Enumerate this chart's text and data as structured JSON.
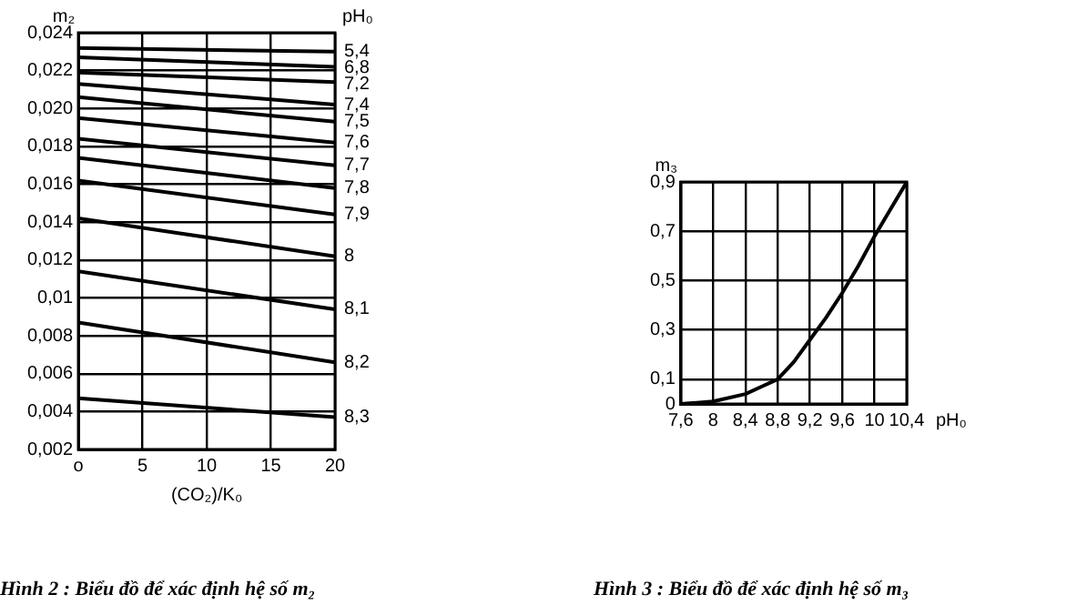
{
  "chart_data": [
    {
      "type": "line",
      "title": "Hình 2 : Biểu đồ để xác định hệ số m₂",
      "xlabel": "(CO₂)/K₀",
      "ylabel": "m₂",
      "legend_title": "pH₀",
      "xlim": [
        0,
        20
      ],
      "xticks": [
        {
          "value": 0,
          "label": "o"
        },
        5,
        10,
        15,
        20
      ],
      "ylim": [
        0.002,
        0.024
      ],
      "yticks": [
        {
          "value": 0.002,
          "label": "0,002"
        },
        {
          "value": 0.004,
          "label": "0,004"
        },
        {
          "value": 0.006,
          "label": "0,006"
        },
        {
          "value": 0.008,
          "label": "0,008"
        },
        {
          "value": 0.01,
          "label": "0,01"
        },
        {
          "value": 0.012,
          "label": "0,012"
        },
        {
          "value": 0.014,
          "label": "0,014"
        },
        {
          "value": 0.016,
          "label": "0,016"
        },
        {
          "value": 0.018,
          "label": "0,018"
        },
        {
          "value": 0.02,
          "label": "0,020"
        },
        {
          "value": 0.022,
          "label": "0,022"
        },
        {
          "value": 0.024,
          "label": "0,024"
        }
      ],
      "grid": true,
      "legend": false,
      "series": [
        {
          "name": "5,4",
          "color": "#000000",
          "x": [
            0,
            20
          ],
          "values": [
            0.0232,
            0.023
          ]
        },
        {
          "name": "6,8",
          "color": "#000000",
          "x": [
            0,
            20
          ],
          "values": [
            0.0227,
            0.0222
          ]
        },
        {
          "name": "7,2",
          "color": "#000000",
          "x": [
            0,
            20
          ],
          "values": [
            0.0219,
            0.0214
          ]
        },
        {
          "name": "7,4",
          "color": "#000000",
          "x": [
            0,
            20
          ],
          "values": [
            0.0213,
            0.0202
          ]
        },
        {
          "name": "7,5",
          "color": "#000000",
          "x": [
            0,
            20
          ],
          "values": [
            0.0206,
            0.0193
          ]
        },
        {
          "name": "7,6",
          "color": "#000000",
          "x": [
            0,
            20
          ],
          "values": [
            0.0195,
            0.0182
          ]
        },
        {
          "name": "7,7",
          "color": "#000000",
          "x": [
            0,
            20
          ],
          "values": [
            0.0184,
            0.017
          ]
        },
        {
          "name": "7,8",
          "color": "#000000",
          "x": [
            0,
            20
          ],
          "values": [
            0.0174,
            0.0158
          ]
        },
        {
          "name": "7,9",
          "color": "#000000",
          "x": [
            0,
            20
          ],
          "values": [
            0.0162,
            0.0144
          ]
        },
        {
          "name": "8",
          "color": "#000000",
          "x": [
            0,
            20
          ],
          "values": [
            0.0142,
            0.0122
          ]
        },
        {
          "name": "8,1",
          "color": "#000000",
          "x": [
            0,
            20
          ],
          "values": [
            0.0114,
            0.0094
          ]
        },
        {
          "name": "8,2",
          "color": "#000000",
          "x": [
            0,
            20
          ],
          "values": [
            0.0087,
            0.0066
          ]
        },
        {
          "name": "8,3",
          "color": "#000000",
          "x": [
            0,
            20
          ],
          "values": [
            0.0047,
            0.0037
          ]
        }
      ]
    },
    {
      "type": "line",
      "title": "Hình 3 : Biểu đồ để xác định hệ số m₃",
      "xlabel": "pH₀",
      "ylabel": "m₃",
      "xlim": [
        7.6,
        10.4
      ],
      "xticks": [
        {
          "value": 7.6,
          "label": "7,6"
        },
        8,
        {
          "value": 8.4,
          "label": "8,4"
        },
        {
          "value": 8.8,
          "label": "8,8"
        },
        {
          "value": 9.2,
          "label": "9,2"
        },
        {
          "value": 9.6,
          "label": "9,6"
        },
        10,
        {
          "value": 10.4,
          "label": "10,4"
        }
      ],
      "ylim": [
        0,
        0.9
      ],
      "yticks": [
        0,
        {
          "value": 0.1,
          "label": "0,1"
        },
        {
          "value": 0.3,
          "label": "0,3"
        },
        {
          "value": 0.5,
          "label": "0,5"
        },
        {
          "value": 0.7,
          "label": "0,7"
        },
        {
          "value": 0.9,
          "label": "0,9"
        }
      ],
      "grid": true,
      "legend": false,
      "series": [
        {
          "color": "#000000",
          "x": [
            7.6,
            8,
            8.4,
            8.6,
            8.8,
            9,
            9.2,
            9.4,
            9.6,
            9.8,
            10,
            10.2,
            10.4
          ],
          "values": [
            0,
            0.01,
            0.04,
            0.07,
            0.1,
            0.17,
            0.26,
            0.35,
            0.45,
            0.56,
            0.68,
            0.79,
            0.9
          ]
        }
      ]
    }
  ]
}
